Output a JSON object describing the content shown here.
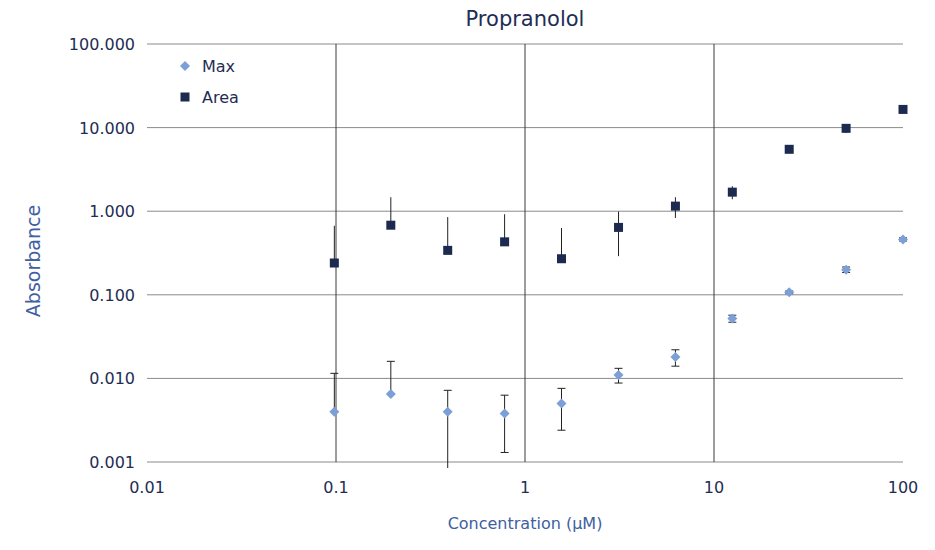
{
  "chart_data": {
    "type": "scatter",
    "title": "Propranolol",
    "x_label": "Concentration (µM)",
    "y_label": "Absorbance",
    "log": true,
    "grid": true,
    "legend": "top-left",
    "xlim": [
      0.01,
      100
    ],
    "xticks": [
      0.01,
      0.1,
      1,
      10,
      100
    ],
    "ylim": [
      0.001,
      100
    ],
    "yticks": [
      0.001,
      {
        "value": 0.01,
        "label": "0.010"
      },
      {
        "value": 0.1,
        "label": "0.100"
      },
      {
        "value": 1,
        "label": "1.000"
      },
      {
        "value": 10,
        "label": "10.000"
      },
      {
        "value": 100,
        "label": "100.000"
      }
    ],
    "x": [
      0.098,
      0.195,
      0.39,
      0.78,
      1.56,
      3.125,
      6.25,
      12.5,
      25,
      50,
      100
    ],
    "series": [
      {
        "name": "Max",
        "color": "#7b9fd6",
        "marker": "diamond",
        "values": [
          0.004,
          0.0065,
          0.004,
          0.0038,
          0.005,
          0.011,
          0.018,
          0.052,
          0.107,
          0.2,
          0.46
        ],
        "errors": [
          0.0075,
          0.0095,
          0.0032,
          0.0025,
          0.0026,
          0.0022,
          0.004,
          0.005,
          0.004,
          0.015,
          0.02
        ]
      },
      {
        "name": "Area",
        "color": "#1b2a4e",
        "marker": "square",
        "values": [
          0.24,
          0.68,
          0.34,
          0.43,
          0.27,
          0.64,
          1.15,
          1.69,
          5.5,
          9.8,
          16.5
        ],
        "errors": [
          0.43,
          0.79,
          0.51,
          0.49,
          0.36,
          0.35,
          0.32,
          0.3,
          0.5,
          1.2,
          0.5
        ]
      }
    ]
  }
}
